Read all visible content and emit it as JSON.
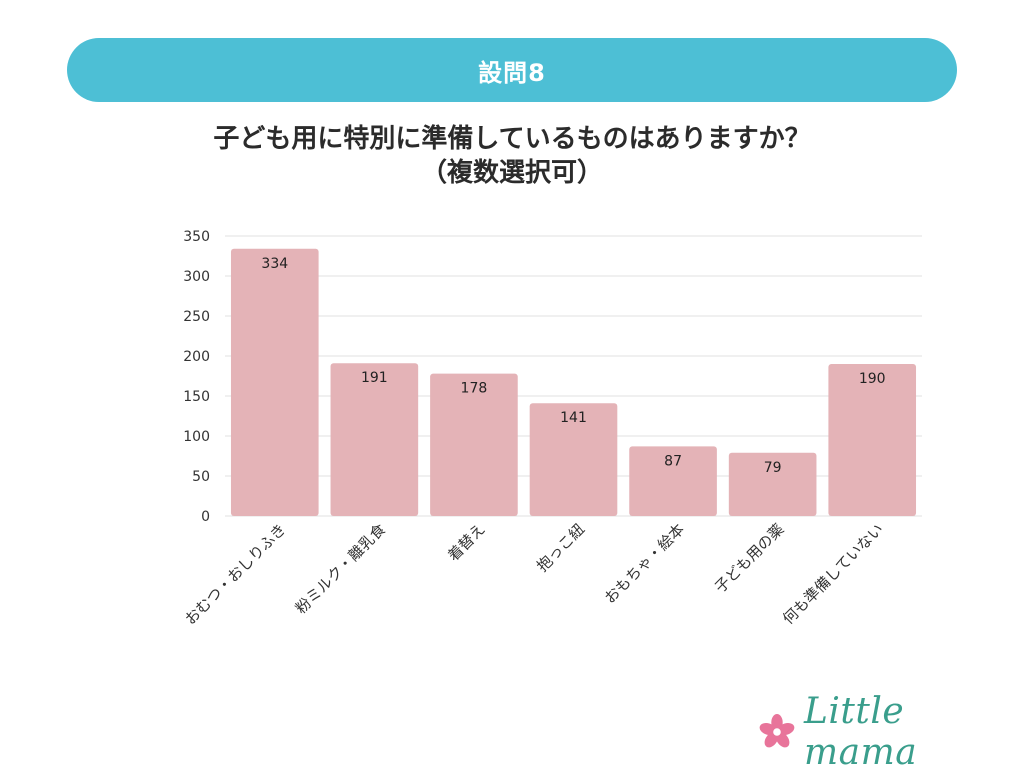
{
  "header": {
    "title": "設問8"
  },
  "question": {
    "line1": "子ども用に特別に準備しているものはありますか？",
    "line2": "（複数選択可）"
  },
  "logo": {
    "text": "Little mama",
    "icon": "flower-icon",
    "icon_color": "#e8749a",
    "text_color": "#3a9e8c"
  },
  "colors": {
    "banner": "#4dbfd5",
    "bar": "#e4b3b7",
    "grid": "#e0e0e0"
  },
  "chart_data": {
    "type": "bar",
    "title": "子ども用に特別に準備しているものはありますか？（複数選択可）",
    "categories": [
      "おむつ・おしりふき",
      "粉ミルク・離乳食",
      "着替え",
      "抱っこ紐",
      "おもちゃ・絵本",
      "子ども用の薬",
      "何も準備していない"
    ],
    "values": [
      334,
      191,
      178,
      141,
      87,
      79,
      190
    ],
    "ylim": [
      0,
      350
    ],
    "yticks": [
      0,
      50,
      100,
      150,
      200,
      250,
      300,
      350
    ],
    "xlabel": "",
    "ylabel": "",
    "grid": true,
    "legend": "none"
  }
}
